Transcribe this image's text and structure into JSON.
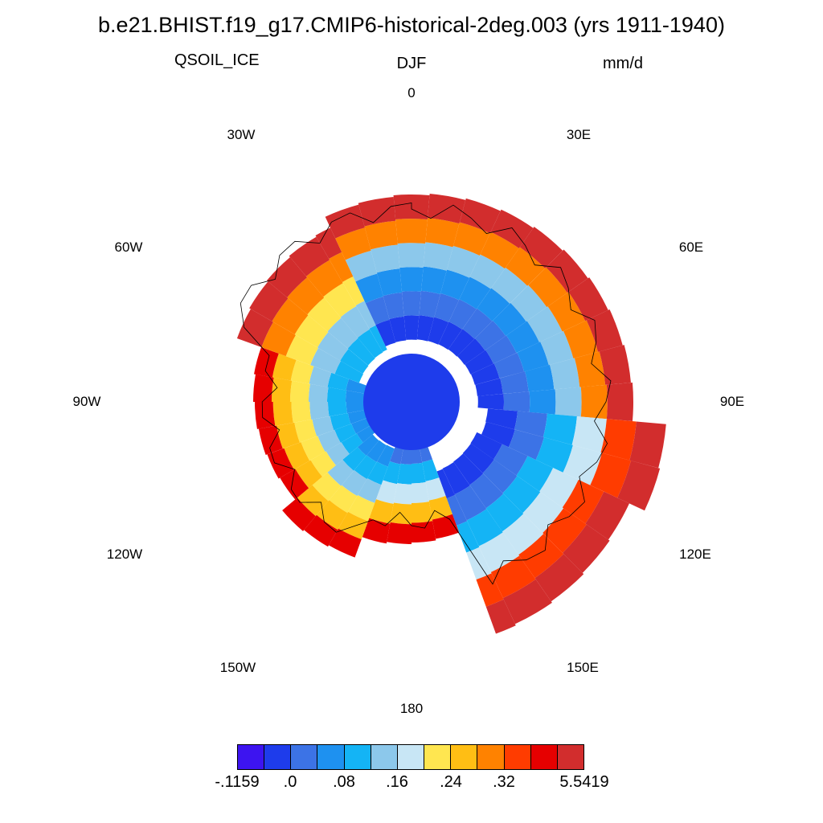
{
  "title": "b.e21.BHIST.f19_g17.CMIP6-historical-2deg.003 (yrs 1911-1940)",
  "left_string": "QSOIL_ICE",
  "center_string": "DJF",
  "right_string": "mm/d",
  "longitude_labels": [
    "0",
    "30E",
    "60E",
    "90E",
    "120E",
    "150E",
    "180",
    "150W",
    "120W",
    "90W",
    "60W",
    "30W"
  ],
  "colorbar": {
    "colors": [
      "#3d14f0",
      "#1e3ceb",
      "#3c73e6",
      "#1e91f0",
      "#14b4f5",
      "#8cc8eb",
      "#c8e6f5",
      "#ffe650",
      "#ffbe14",
      "#ff8200",
      "#ff3c00",
      "#e60000",
      "#d22d2d"
    ],
    "labels": [
      "-.1159",
      ".0",
      ".08",
      ".16",
      ".24",
      ".32",
      "5.5419"
    ]
  },
  "chart_data": {
    "type": "heatmap",
    "projection": "south polar stereographic",
    "variable": "QSOIL_ICE",
    "season": "DJF",
    "units": "mm/d",
    "color_levels": [
      -0.1159,
      0.0,
      0.04,
      0.08,
      0.12,
      0.16,
      0.2,
      0.24,
      0.28,
      0.32,
      0.36,
      0.4,
      5.5419
    ],
    "sectors": [
      {
        "lon_from": -25,
        "lon_to": 95,
        "value_bands": [
          -0.05,
          0.02,
          0.06,
          0.14,
          0.3,
          0.5
        ]
      },
      {
        "lon_from": 95,
        "lon_to": 160,
        "value_bands": [
          -0.05,
          0.02,
          0.1,
          0.18,
          0.34,
          0.5
        ]
      },
      {
        "lon_from": 160,
        "lon_to": 200,
        "value_bands": [
          0.03,
          0.1,
          0.18,
          0.26,
          0.36
        ]
      },
      {
        "lon_from": 200,
        "lon_to": 290,
        "value_bands": [
          0.05,
          0.1,
          0.14,
          0.2,
          0.26,
          0.36
        ]
      },
      {
        "lon_from": 290,
        "lon_to": 335,
        "value_bands": [
          0.1,
          0.14,
          0.22,
          0.3,
          0.5
        ]
      }
    ]
  }
}
